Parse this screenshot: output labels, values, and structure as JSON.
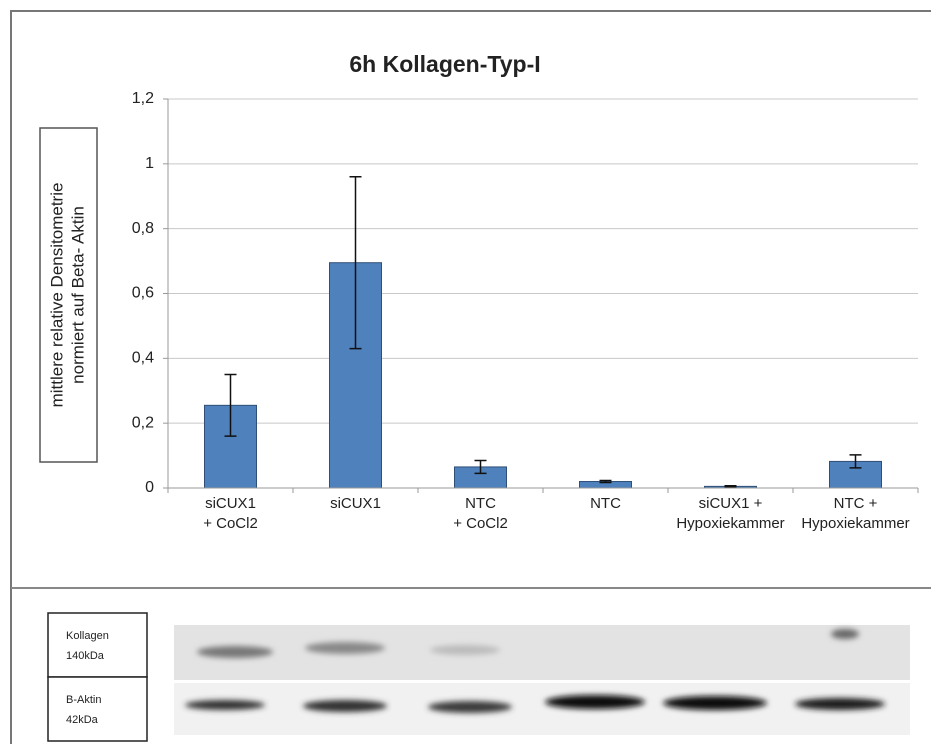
{
  "chart_data": {
    "type": "bar",
    "title": "6h Kollagen-Typ-I",
    "ylabel": [
      "mittlere relative Densitometrie",
      "normiert auf Beta- Aktin"
    ],
    "categories": [
      [
        "siCUX1",
        "+ CoCl2"
      ],
      [
        "siCUX1"
      ],
      [
        "NTC",
        "+ CoCl2"
      ],
      [
        "NTC"
      ],
      [
        "siCUX1 +",
        "Hypoxiekammer"
      ],
      [
        "NTC  +",
        "Hypoxiekammer"
      ]
    ],
    "values": [
      0.255,
      0.695,
      0.065,
      0.02,
      0.005,
      0.082
    ],
    "errors": [
      0.095,
      0.265,
      0.02,
      0.003,
      0.002,
      0.02
    ],
    "color": "#4f81bd",
    "ylim": [
      0,
      1.2
    ],
    "yticks": [
      0,
      {
        "value": 0.2,
        "label": "0,2"
      },
      {
        "value": 0.4,
        "label": "0,4"
      },
      {
        "value": 0.6,
        "label": "0,6"
      },
      {
        "value": 0.8,
        "label": "0,8"
      },
      1,
      {
        "value": 1.2,
        "label": "1,2"
      }
    ],
    "grid": true
  },
  "blot": {
    "rows": [
      {
        "name": "Kollagen",
        "size": "140kDa"
      },
      {
        "name": "B-Aktin",
        "size": "42kDa"
      }
    ]
  }
}
